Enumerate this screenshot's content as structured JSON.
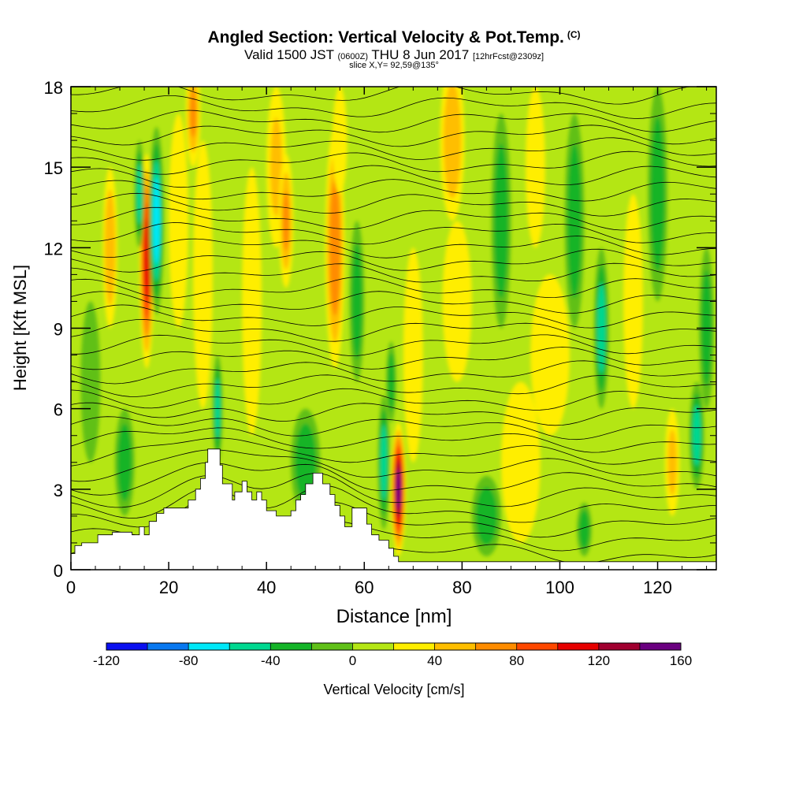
{
  "header": {
    "title": "Angled Section: Vertical Velocity & Pot.Temp.",
    "title_suffix": "(C)",
    "valid_main": "Valid 1500 JST",
    "valid_utc": "(0600Z)",
    "valid_date": "THU 8 Jun 2017",
    "valid_fcst": "[12hrFcst@2309z]",
    "slice": "slice X,Y= 92,59@135°"
  },
  "chart_data": {
    "type": "heatmap",
    "xlabel": "Distance [nm]",
    "ylabel": "Height [Kft MSL]",
    "xlim": [
      0,
      132
    ],
    "ylim": [
      0,
      18
    ],
    "x_ticks": [
      0,
      20,
      40,
      60,
      80,
      100,
      120
    ],
    "y_ticks": [
      0,
      3,
      6,
      9,
      12,
      15,
      18
    ],
    "background_value_range_cm_s": [
      0,
      20
    ],
    "colorbar": {
      "label": "Vertical Velocity [cm/s]",
      "levels": [
        -120,
        -100,
        -80,
        -60,
        -40,
        -20,
        0,
        20,
        40,
        60,
        80,
        100,
        120,
        140,
        160
      ],
      "tick_labels": [
        "-120",
        "-80",
        "-40",
        "0",
        "40",
        "80",
        "120",
        "160"
      ],
      "colors": [
        "#0a10f0",
        "#0878f0",
        "#00e8f8",
        "#00d890",
        "#14b428",
        "#60c018",
        "#b4e614",
        "#ffee00",
        "#ffbe00",
        "#ff8c00",
        "#ff4800",
        "#e60000",
        "#a00030",
        "#6a0080"
      ]
    },
    "velocity_features": [
      {
        "x": 8,
        "y": 12,
        "rx": 1.5,
        "ry": 3,
        "value": 50
      },
      {
        "x": 15.5,
        "y": 11.5,
        "rx": 1.5,
        "ry": 4,
        "value": 110
      },
      {
        "x": 17.5,
        "y": 13,
        "rx": 1.5,
        "ry": 3.5,
        "value": -80
      },
      {
        "x": 14,
        "y": 14,
        "rx": 1,
        "ry": 2,
        "value": -50
      },
      {
        "x": 22,
        "y": 13,
        "rx": 2,
        "ry": 4,
        "value": 35
      },
      {
        "x": 25,
        "y": 17,
        "rx": 1.5,
        "ry": 2,
        "value": 60
      },
      {
        "x": 27,
        "y": 11,
        "rx": 2,
        "ry": 5,
        "value": 30
      },
      {
        "x": 30,
        "y": 6,
        "rx": 1,
        "ry": 2,
        "value": -50
      },
      {
        "x": 37,
        "y": 10,
        "rx": 2,
        "ry": 5,
        "value": 30
      },
      {
        "x": 42,
        "y": 15,
        "rx": 2,
        "ry": 3,
        "value": 40
      },
      {
        "x": 44,
        "y": 13,
        "rx": 1.5,
        "ry": 2.5,
        "value": 60
      },
      {
        "x": 54,
        "y": 12,
        "rx": 2,
        "ry": 4.5,
        "value": 65
      },
      {
        "x": 55,
        "y": 16,
        "rx": 1.5,
        "ry": 2,
        "value": 35
      },
      {
        "x": 58.5,
        "y": 10,
        "rx": 1.5,
        "ry": 3,
        "value": -40
      },
      {
        "x": 64,
        "y": 4,
        "rx": 1.2,
        "ry": 2.5,
        "value": -60
      },
      {
        "x": 65.5,
        "y": 7,
        "rx": 1,
        "ry": 1.5,
        "value": -40
      },
      {
        "x": 67,
        "y": 3,
        "rx": 1.5,
        "ry": 2.5,
        "value": 150
      },
      {
        "x": 70,
        "y": 8,
        "rx": 2,
        "ry": 4,
        "value": 30
      },
      {
        "x": 78,
        "y": 16,
        "rx": 2.5,
        "ry": 3,
        "value": 50
      },
      {
        "x": 79,
        "y": 10,
        "rx": 3,
        "ry": 3,
        "value": 30
      },
      {
        "x": 88,
        "y": 13,
        "rx": 2,
        "ry": 4,
        "value": -30
      },
      {
        "x": 92,
        "y": 4,
        "rx": 4,
        "ry": 3,
        "value": 30
      },
      {
        "x": 95,
        "y": 15,
        "rx": 2,
        "ry": 3,
        "value": 30
      },
      {
        "x": 98,
        "y": 8,
        "rx": 4,
        "ry": 3,
        "value": 35
      },
      {
        "x": 103,
        "y": 13,
        "rx": 2,
        "ry": 4,
        "value": -25
      },
      {
        "x": 108.5,
        "y": 9,
        "rx": 1.5,
        "ry": 3,
        "value": -55
      },
      {
        "x": 115,
        "y": 10,
        "rx": 2,
        "ry": 4,
        "value": 30
      },
      {
        "x": 120,
        "y": 14,
        "rx": 2,
        "ry": 4,
        "value": -25
      },
      {
        "x": 123,
        "y": 4,
        "rx": 1.5,
        "ry": 2,
        "value": 40
      },
      {
        "x": 128,
        "y": 5,
        "rx": 1.5,
        "ry": 2,
        "value": -55
      },
      {
        "x": 130,
        "y": 9,
        "rx": 1.5,
        "ry": 3,
        "value": -40
      },
      {
        "x": 4,
        "y": 7,
        "rx": 2,
        "ry": 3,
        "value": -20
      },
      {
        "x": 11,
        "y": 4,
        "rx": 2,
        "ry": 2,
        "value": -25
      },
      {
        "x": 48,
        "y": 4,
        "rx": 3,
        "ry": 2,
        "value": -25
      },
      {
        "x": 85,
        "y": 2,
        "rx": 3,
        "ry": 1.5,
        "value": -25
      },
      {
        "x": 105,
        "y": 1.5,
        "rx": 1.5,
        "ry": 1,
        "value": -25
      }
    ],
    "terrain": [
      [
        0,
        0.6
      ],
      [
        0.8,
        0.6
      ],
      [
        0.8,
        0.9
      ],
      [
        2.2,
        0.9
      ],
      [
        2.2,
        1.0
      ],
      [
        5.5,
        1.0
      ],
      [
        5.5,
        1.3
      ],
      [
        8.5,
        1.3
      ],
      [
        8.5,
        1.4
      ],
      [
        12.5,
        1.4
      ],
      [
        12.5,
        1.3
      ],
      [
        14,
        1.3
      ],
      [
        14,
        1.6
      ],
      [
        15,
        1.6
      ],
      [
        15,
        1.3
      ],
      [
        16,
        1.3
      ],
      [
        16,
        1.8
      ],
      [
        17.5,
        1.8
      ],
      [
        17.5,
        2.1
      ],
      [
        19,
        2.1
      ],
      [
        19,
        2.3
      ],
      [
        24,
        2.3
      ],
      [
        24,
        2.6
      ],
      [
        25.5,
        2.6
      ],
      [
        25.5,
        3.0
      ],
      [
        26.5,
        3.0
      ],
      [
        26.5,
        3.4
      ],
      [
        27.5,
        3.4
      ],
      [
        27.5,
        4.0
      ],
      [
        28,
        4.0
      ],
      [
        28,
        4.5
      ],
      [
        30.5,
        4.5
      ],
      [
        30.5,
        3.9
      ],
      [
        31,
        3.9
      ],
      [
        31,
        3.2
      ],
      [
        33,
        3.2
      ],
      [
        33,
        2.6
      ],
      [
        33.5,
        2.6
      ],
      [
        33.5,
        2.9
      ],
      [
        35,
        2.9
      ],
      [
        35,
        3.3
      ],
      [
        36,
        3.3
      ],
      [
        36,
        2.9
      ],
      [
        37,
        2.9
      ],
      [
        37,
        2.6
      ],
      [
        38,
        2.6
      ],
      [
        38,
        2.9
      ],
      [
        39,
        2.9
      ],
      [
        39,
        2.6
      ],
      [
        40,
        2.6
      ],
      [
        40,
        2.2
      ],
      [
        42,
        2.2
      ],
      [
        42,
        2.0
      ],
      [
        45,
        2.0
      ],
      [
        45,
        2.2
      ],
      [
        46,
        2.2
      ],
      [
        46,
        2.6
      ],
      [
        47,
        2.6
      ],
      [
        47,
        2.8
      ],
      [
        48,
        2.8
      ],
      [
        48,
        3.2
      ],
      [
        49.5,
        3.2
      ],
      [
        49.5,
        3.6
      ],
      [
        51.5,
        3.6
      ],
      [
        51.5,
        3.2
      ],
      [
        53,
        3.2
      ],
      [
        53,
        2.8
      ],
      [
        54,
        2.8
      ],
      [
        54,
        2.4
      ],
      [
        55,
        2.4
      ],
      [
        55,
        2.0
      ],
      [
        56,
        2.0
      ],
      [
        56,
        1.6
      ],
      [
        57.5,
        1.6
      ],
      [
        57.5,
        2.3
      ],
      [
        60.5,
        2.3
      ],
      [
        60.5,
        1.7
      ],
      [
        61.5,
        1.7
      ],
      [
        61.5,
        1.3
      ],
      [
        63,
        1.3
      ],
      [
        63,
        1.1
      ],
      [
        65,
        1.1
      ],
      [
        65,
        0.8
      ],
      [
        66,
        0.8
      ],
      [
        66,
        0.5
      ],
      [
        67,
        0.5
      ],
      [
        67,
        0.3
      ],
      [
        132,
        0.3
      ]
    ]
  }
}
